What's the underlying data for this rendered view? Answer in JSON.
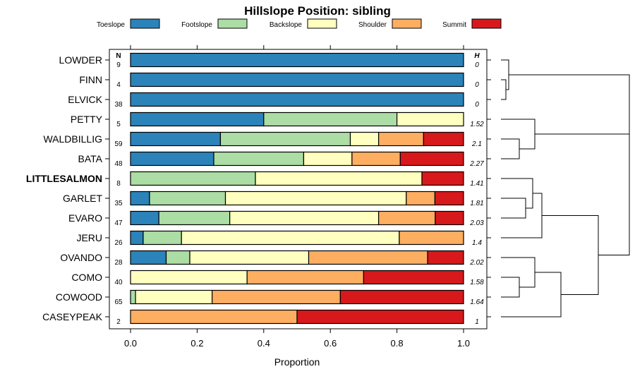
{
  "chart_data": {
    "type": "bar",
    "stacked": true,
    "orientation": "horizontal",
    "title": "Hillslope Position: sibling",
    "xlabel": "Proportion",
    "ylabel": "",
    "xlim": [
      0,
      1
    ],
    "x_ticks": [
      "0.0",
      "0.2",
      "0.4",
      "0.6",
      "0.8",
      "1.0"
    ],
    "n_header": "N",
    "h_header": "H",
    "highlight_category": "LITTLESALMON",
    "series": [
      {
        "name": "Toeslope",
        "color": "#2B83BA"
      },
      {
        "name": "Footslope",
        "color": "#ABDDA4"
      },
      {
        "name": "Backslope",
        "color": "#FFFFBF"
      },
      {
        "name": "Shoulder",
        "color": "#FDAE61"
      },
      {
        "name": "Summit",
        "color": "#D7191C"
      }
    ],
    "categories": [
      {
        "name": "LOWDER",
        "n": "9",
        "h": "0",
        "values": [
          1.0,
          0,
          0,
          0,
          0
        ]
      },
      {
        "name": "FINN",
        "n": "4",
        "h": "0",
        "values": [
          1.0,
          0,
          0,
          0,
          0
        ]
      },
      {
        "name": "ELVICK",
        "n": "38",
        "h": "0",
        "values": [
          1.0,
          0,
          0,
          0,
          0
        ]
      },
      {
        "name": "PETTY",
        "n": "5",
        "h": "1.52",
        "values": [
          0.4,
          0.4,
          0.2,
          0,
          0
        ]
      },
      {
        "name": "WALDBILLIG",
        "n": "59",
        "h": "2.1",
        "values": [
          0.27,
          0.39,
          0.085,
          0.135,
          0.12
        ]
      },
      {
        "name": "BATA",
        "n": "48",
        "h": "2.27",
        "values": [
          0.25,
          0.27,
          0.145,
          0.145,
          0.19
        ]
      },
      {
        "name": "LITTLESALMON",
        "n": "8",
        "h": "1.41",
        "values": [
          0,
          0.375,
          0.5,
          0,
          0.125
        ]
      },
      {
        "name": "GARLET",
        "n": "35",
        "h": "1.81",
        "values": [
          0.057,
          0.228,
          0.543,
          0.086,
          0.086
        ]
      },
      {
        "name": "EVARO",
        "n": "47",
        "h": "2.03",
        "values": [
          0.085,
          0.213,
          0.447,
          0.17,
          0.085
        ]
      },
      {
        "name": "JERU",
        "n": "26",
        "h": "1.4",
        "values": [
          0.038,
          0.115,
          0.654,
          0.193,
          0
        ]
      },
      {
        "name": "OVANDO",
        "n": "28",
        "h": "2.02",
        "values": [
          0.107,
          0.071,
          0.357,
          0.357,
          0.108
        ]
      },
      {
        "name": "COMO",
        "n": "40",
        "h": "1.58",
        "values": [
          0,
          0,
          0.35,
          0.35,
          0.3
        ]
      },
      {
        "name": "COWOOD",
        "n": "65",
        "h": "1.64",
        "values": [
          0,
          0.015,
          0.23,
          0.385,
          0.37
        ]
      },
      {
        "name": "CASEYPEAK",
        "n": "2",
        "h": "1",
        "values": [
          0,
          0,
          0,
          0.5,
          0.5
        ]
      }
    ],
    "dendrogram": {
      "description": "hierarchical clustering of soil series by hillslope-position proportions",
      "merges": [
        [
          1,
          2
        ],
        [
          0,
          "m0"
        ],
        [
          4,
          5
        ],
        [
          3,
          "m2"
        ],
        [
          7,
          8
        ],
        [
          6,
          "m4"
        ],
        [
          9,
          "m5"
        ],
        [
          11,
          12
        ],
        [
          10,
          "m7"
        ],
        [
          13,
          "m8"
        ],
        [
          "m6",
          "m9"
        ],
        [
          "m3",
          "m10"
        ],
        [
          "m1",
          "m11"
        ]
      ]
    }
  }
}
